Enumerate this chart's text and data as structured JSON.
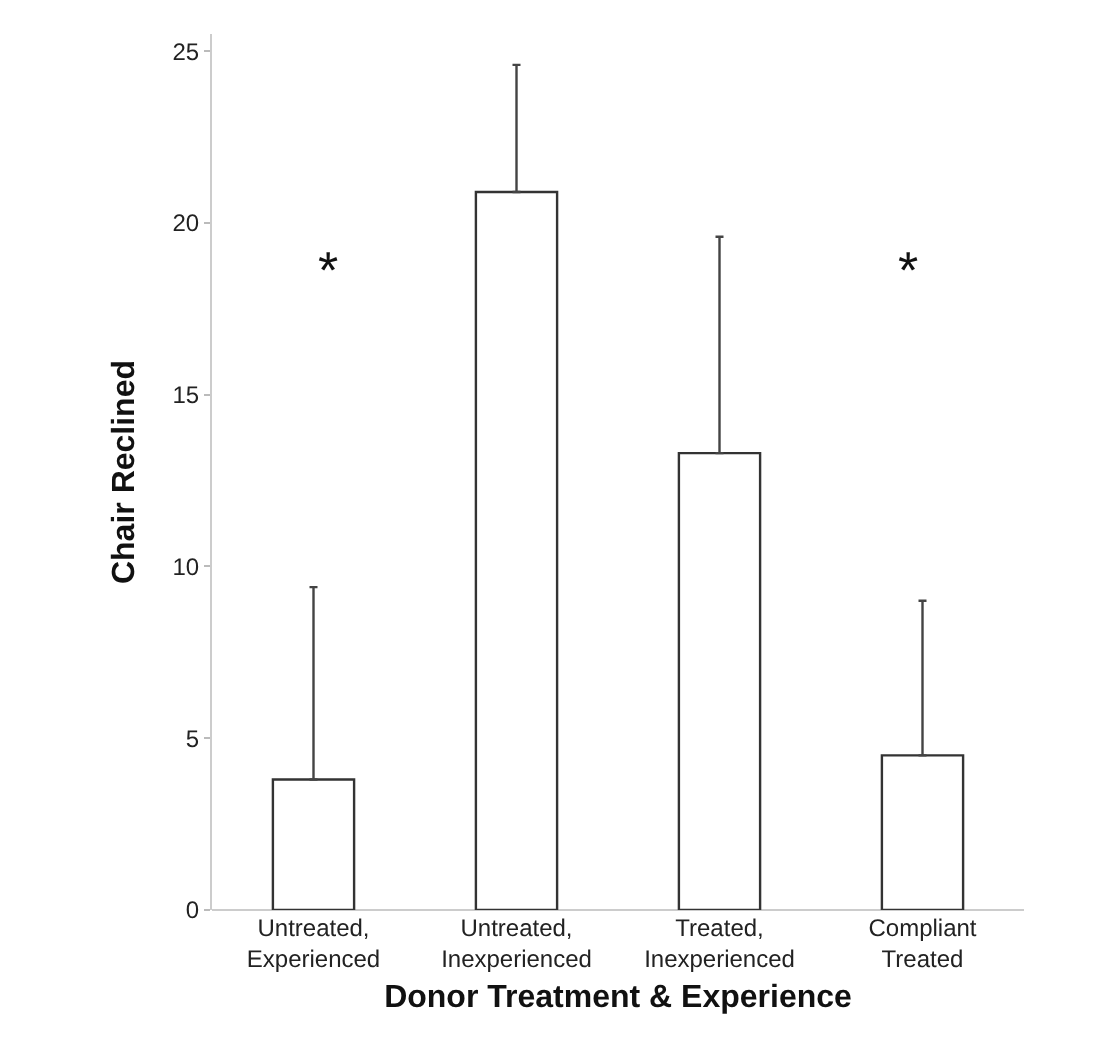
{
  "chart_data": {
    "type": "bar",
    "xlabel": "Donor Treatment & Experience",
    "ylabel": "Chair Reclined",
    "categories": [
      "Untreated,\nExperienced",
      "Untreated,\nInexperienced",
      "Treated,\nInexperienced",
      "Compliant\nTreated"
    ],
    "values": [
      3.8,
      20.9,
      13.3,
      4.5
    ],
    "errors": [
      [
        3.8,
        9.4
      ],
      [
        20.9,
        24.6
      ],
      [
        13.3,
        19.6
      ],
      [
        4.5,
        9.0
      ]
    ],
    "color": "#ffffff",
    "ylim": [
      0,
      25.5
    ],
    "yticks": [
      0,
      5,
      10,
      15,
      20,
      25
    ],
    "grid": false,
    "annotations": [
      "*",
      "*"
    ]
  }
}
